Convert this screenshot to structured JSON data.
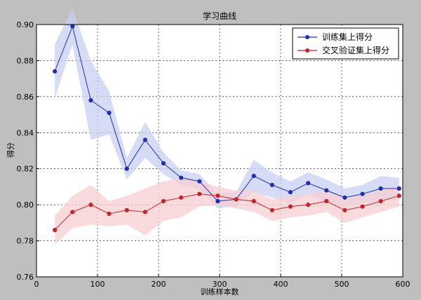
{
  "chart_data": {
    "type": "line",
    "title": "学习曲线",
    "xlabel": "训练样本数",
    "ylabel": "得分",
    "xlim": [
      0,
      600
    ],
    "ylim": [
      0.76,
      0.9
    ],
    "xticks": [
      0,
      100,
      200,
      300,
      400,
      500,
      600
    ],
    "yticks": [
      0.76,
      0.78,
      0.8,
      0.82,
      0.84,
      0.86,
      0.88,
      0.9
    ],
    "grid": true,
    "legend_position": "top-right",
    "x": [
      30,
      59,
      89,
      119,
      148,
      178,
      208,
      237,
      267,
      297,
      327,
      356,
      386,
      416,
      445,
      475,
      505,
      534,
      564,
      594
    ],
    "series": [
      {
        "name": "训练集上得分",
        "color": "#1f2fae",
        "band_color": "#c8d0f2",
        "values": [
          0.874,
          0.899,
          0.858,
          0.851,
          0.82,
          0.836,
          0.823,
          0.815,
          0.813,
          0.802,
          0.803,
          0.816,
          0.811,
          0.807,
          0.812,
          0.808,
          0.804,
          0.806,
          0.809,
          0.809
        ],
        "std": [
          0.015,
          0.01,
          0.022,
          0.012,
          0.006,
          0.01,
          0.006,
          0.004,
          0.004,
          0.004,
          0.004,
          0.009,
          0.007,
          0.006,
          0.006,
          0.006,
          0.005,
          0.005,
          0.007,
          0.006
        ]
      },
      {
        "name": "交叉验证集上得分",
        "color": "#c4242b",
        "band_color": "#f7cfd3",
        "values": [
          0.786,
          0.796,
          0.8,
          0.795,
          0.797,
          0.796,
          0.802,
          0.804,
          0.806,
          0.805,
          0.803,
          0.802,
          0.797,
          0.799,
          0.8,
          0.802,
          0.797,
          0.799,
          0.802,
          0.805
        ],
        "std": [
          0.008,
          0.009,
          0.011,
          0.007,
          0.008,
          0.013,
          0.011,
          0.011,
          0.007,
          0.005,
          0.005,
          0.006,
          0.006,
          0.006,
          0.006,
          0.006,
          0.007,
          0.006,
          0.006,
          0.006
        ]
      }
    ]
  }
}
